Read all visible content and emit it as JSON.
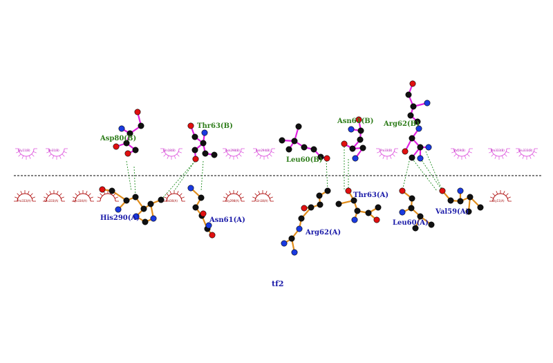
{
  "caption": "tf2",
  "colors": {
    "bond_b": "#e020e0",
    "bond_a": "#e08c1a",
    "hbond": "#1e8c1e",
    "arc_b": "#e060e0",
    "arc_a": "#b01010",
    "atom_c": "#111111",
    "atom_n": "#1a3ae0",
    "atom_o": "#e01010",
    "divider": "#000000"
  },
  "chain_b": {
    "residues": [
      {
        "label": "Asp80(B)"
      },
      {
        "label": "Thr63(B)"
      },
      {
        "label": "Leu60(B)"
      },
      {
        "label": "Asn61(B)"
      },
      {
        "label": "Arg62(B)"
      }
    ],
    "hydrophobic": [
      {
        "label": "Gly11(B)"
      },
      {
        "label": "Ile31(B)"
      },
      {
        "label": "Gln18(B)"
      },
      {
        "label": "Asn298(B)"
      },
      {
        "label": "Asn294(B)"
      },
      {
        "label": "Pro33(B)"
      },
      {
        "label": "Val59(B)"
      },
      {
        "label": "Pro333(B)"
      },
      {
        "label": "Glu333(B)"
      }
    ]
  },
  "chain_a": {
    "residues": [
      {
        "label": "His290(A)"
      },
      {
        "label": "Asn61(A)"
      },
      {
        "label": "Arg62(A)"
      },
      {
        "label": "Thr63(A)"
      },
      {
        "label": "Leu60(A)"
      },
      {
        "label": "Val59(A)"
      }
    ],
    "hydrophobic": [
      {
        "label": "Pro333(A)"
      },
      {
        "label": "Glu333(A)"
      },
      {
        "label": "Lys334(A)"
      },
      {
        "label": "Val36(A)"
      },
      {
        "label": "Gly298(A)"
      },
      {
        "label": "Gln18(A)"
      },
      {
        "label": "Gly11(A)"
      }
    ]
  }
}
